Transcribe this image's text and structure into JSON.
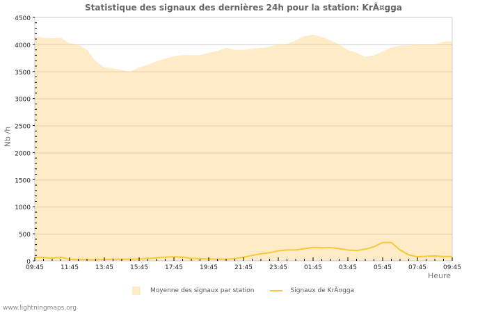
{
  "title": "Statistique des signaux des dernières 24h pour la station: KrÃ¤gga",
  "axes": {
    "ylabel": "Nb /h",
    "xlabel": "Heure",
    "yticks": [
      0,
      500,
      1000,
      1500,
      2000,
      2500,
      3000,
      3500,
      4000,
      4500
    ],
    "xticks": [
      "09:45",
      "11:45",
      "13:45",
      "15:45",
      "17:45",
      "19:45",
      "21:45",
      "23:45",
      "01:45",
      "03:45",
      "05:45",
      "07:45",
      "09:45"
    ]
  },
  "legend": {
    "area_label": "Moyenne des signaux par station",
    "line_label": "Signaux de KrÃ¤gga"
  },
  "footer": "www.lightningmaps.org",
  "colors": {
    "area": "#feebc8",
    "line": "#f9c935",
    "grid": "#cccccc",
    "title": "#666666"
  },
  "chart_data": {
    "type": "area",
    "title": "Statistique des signaux des dernières 24h pour la station: KrÃ¤gga",
    "xlabel": "Heure",
    "ylabel": "Nb /h",
    "ylim": [
      0,
      4500
    ],
    "grid": true,
    "legend_position": "bottom",
    "x": [
      "09:45",
      "10:15",
      "10:45",
      "11:15",
      "11:45",
      "12:15",
      "12:45",
      "13:15",
      "13:45",
      "14:15",
      "14:45",
      "15:15",
      "15:45",
      "16:15",
      "16:45",
      "17:15",
      "17:45",
      "18:15",
      "18:45",
      "19:15",
      "19:45",
      "20:15",
      "20:45",
      "21:15",
      "21:45",
      "22:15",
      "22:45",
      "23:15",
      "23:45",
      "00:15",
      "00:45",
      "01:15",
      "01:45",
      "02:15",
      "02:45",
      "03:15",
      "03:45",
      "04:15",
      "04:45",
      "05:15",
      "05:45",
      "06:15",
      "06:45",
      "07:15",
      "07:45",
      "08:15",
      "08:45",
      "09:15",
      "09:45"
    ],
    "series": [
      {
        "name": "Moyenne des signaux par station",
        "type": "area",
        "values": [
          4150,
          4125,
          4115,
          4125,
          4020,
          4000,
          3900,
          3690,
          3575,
          3560,
          3525,
          3500,
          3575,
          3625,
          3690,
          3740,
          3780,
          3805,
          3805,
          3805,
          3845,
          3880,
          3935,
          3900,
          3900,
          3920,
          3935,
          3960,
          4000,
          4010,
          4075,
          4150,
          4180,
          4140,
          4075,
          4000,
          3900,
          3845,
          3770,
          3795,
          3870,
          3945,
          3975,
          3985,
          4000,
          4000,
          4000,
          4050,
          4060
        ]
      },
      {
        "name": "Signaux de KrÃ¤gga",
        "type": "line",
        "values": [
          65,
          60,
          50,
          65,
          30,
          25,
          20,
          20,
          25,
          30,
          30,
          30,
          35,
          45,
          55,
          70,
          75,
          70,
          45,
          40,
          35,
          30,
          30,
          40,
          65,
          100,
          130,
          150,
          185,
          200,
          200,
          225,
          250,
          240,
          245,
          225,
          200,
          190,
          215,
          260,
          340,
          340,
          200,
          110,
          75,
          85,
          90,
          80,
          80
        ]
      }
    ]
  }
}
